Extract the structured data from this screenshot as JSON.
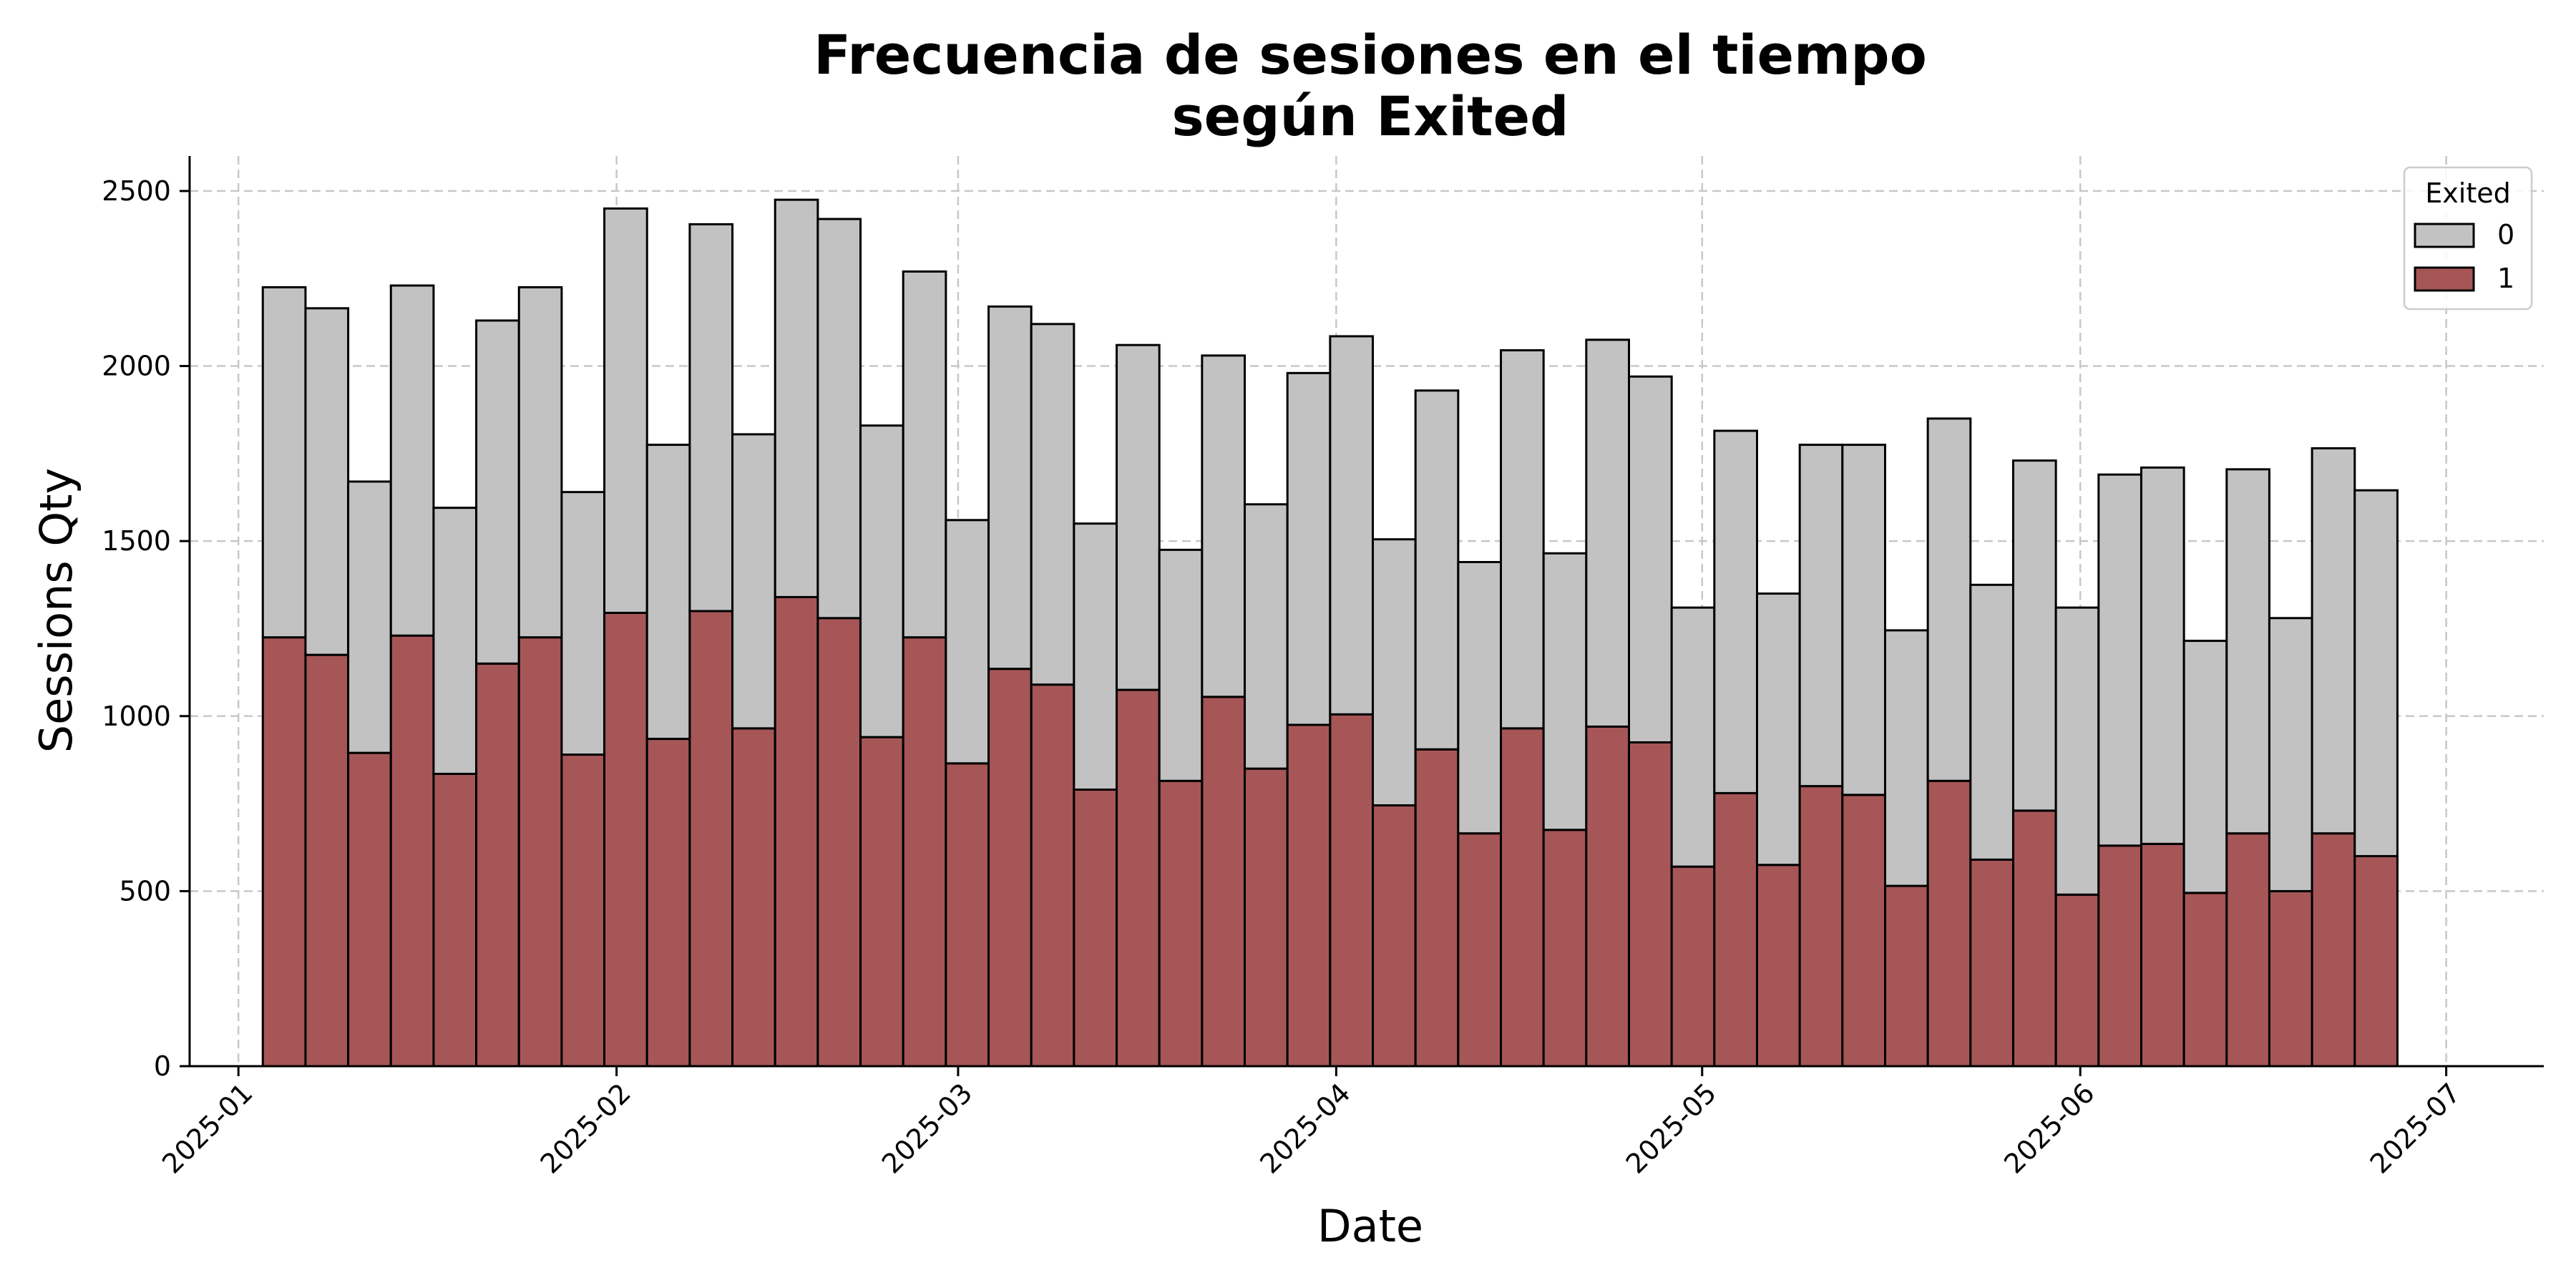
{
  "chart_data": {
    "type": "bar",
    "stacked": true,
    "title": "Frecuencia de sesiones en el tiempo",
    "subtitle": "según Exited",
    "xlabel": "Date",
    "ylabel": "Sessions Qty",
    "xlim": [
      "2024-12-28",
      "2025-07-09"
    ],
    "ylim": [
      0,
      2600
    ],
    "yticks": [
      0,
      500,
      1000,
      1500,
      2000,
      2500
    ],
    "xticks": [
      "2025-01",
      "2025-02",
      "2025-03",
      "2025-04",
      "2025-05",
      "2025-06",
      "2025-07"
    ],
    "grid": true,
    "bin_start": "2025-01-03",
    "bin_days": 3.5,
    "legend": {
      "title": "Exited",
      "position": "top-right"
    },
    "series": [
      {
        "name": "1",
        "color": "#a65656",
        "values": [
          1225,
          1175,
          895,
          1230,
          835,
          1150,
          1225,
          890,
          1295,
          935,
          1300,
          965,
          1340,
          1280,
          940,
          1225,
          865,
          1135,
          1090,
          790,
          1075,
          815,
          1055,
          850,
          975,
          1005,
          745,
          905,
          665,
          965,
          675,
          970,
          925,
          570,
          780,
          575,
          800,
          775,
          515,
          815,
          590,
          730,
          490,
          630,
          635,
          495,
          665,
          500,
          665,
          600
        ]
      },
      {
        "name": "0",
        "color": "#c3c2c2",
        "values": [
          1000,
          990,
          775,
          1000,
          760,
          980,
          1000,
          750,
          1155,
          840,
          1105,
          840,
          1135,
          1140,
          890,
          1045,
          695,
          1035,
          1030,
          760,
          985,
          660,
          975,
          755,
          1005,
          1080,
          760,
          1025,
          775,
          1080,
          790,
          1105,
          1045,
          740,
          1035,
          775,
          975,
          1000,
          730,
          1035,
          785,
          1000,
          820,
          1060,
          1075,
          720,
          1040,
          780,
          1100,
          1045
        ]
      }
    ]
  }
}
